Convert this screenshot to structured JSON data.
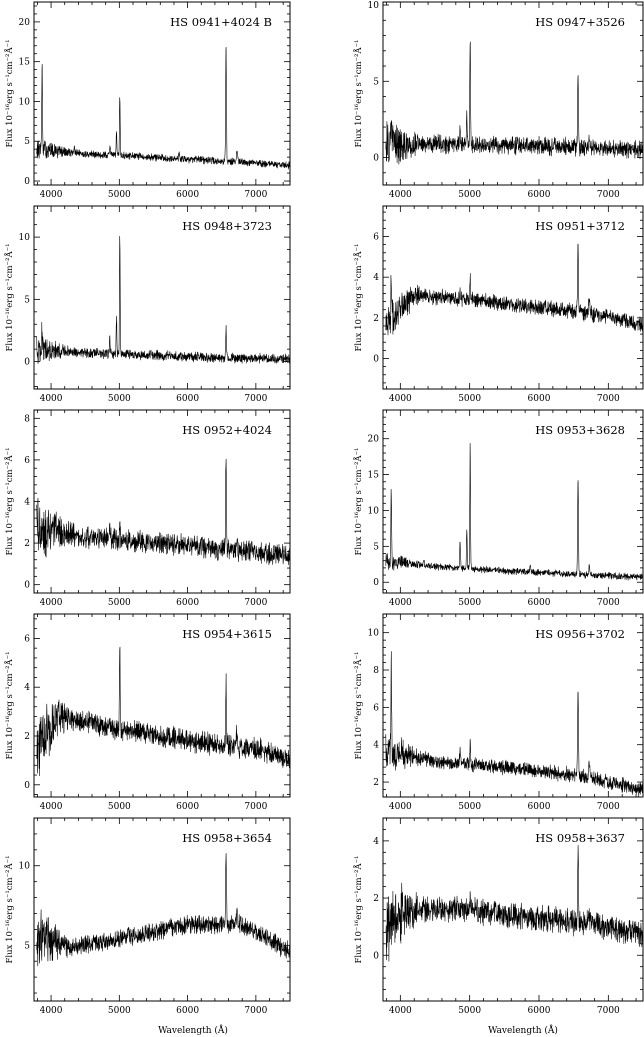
{
  "figure": {
    "xlabel": "Wavelength (Å)",
    "ylabel": "Flux 10⁻¹⁶erg s⁻¹cm⁻²Å⁻¹"
  },
  "chart_data": [
    {
      "type": "line",
      "title": "HS 0941+4024 B",
      "xlim": [
        3750,
        7500
      ],
      "ylim": [
        -0.5,
        22.5
      ],
      "xticks": [
        4000,
        5000,
        6000,
        7000
      ],
      "yticks": [
        0,
        5,
        10,
        15,
        20
      ],
      "continuum": [
        [
          3800,
          4.0
        ],
        [
          4500,
          3.4
        ],
        [
          5500,
          3.0
        ],
        [
          6500,
          2.5
        ],
        [
          7500,
          2.0
        ]
      ],
      "noise": 0.35,
      "lines": [
        [
          3868,
          11.5,
          5
        ],
        [
          4340,
          0.8,
          6
        ],
        [
          4861,
          1.3,
          6
        ],
        [
          4959,
          3.0,
          5
        ],
        [
          5007,
          7.5,
          5
        ],
        [
          5876,
          0.6,
          7
        ],
        [
          6563,
          14.8,
          6
        ],
        [
          6724,
          1.3,
          8
        ]
      ]
    },
    {
      "type": "line",
      "title": "HS 0947+3526",
      "xlim": [
        3750,
        7500
      ],
      "ylim": [
        -1.8,
        10.2
      ],
      "xticks": [
        4000,
        5000,
        6000,
        7000
      ],
      "yticks": [
        0,
        5,
        10
      ],
      "continuum": [
        [
          3800,
          0.8
        ],
        [
          4500,
          0.9
        ],
        [
          5500,
          0.8
        ],
        [
          6500,
          0.7
        ],
        [
          7500,
          0.5
        ]
      ],
      "noise": 0.45,
      "lines": [
        [
          3868,
          1.8,
          5
        ],
        [
          4861,
          1.2,
          6
        ],
        [
          4959,
          2.2,
          5
        ],
        [
          5007,
          7.2,
          5
        ],
        [
          6563,
          4.8,
          6
        ],
        [
          6724,
          0.5,
          8
        ]
      ]
    },
    {
      "type": "line",
      "title": "HS 0948+3723",
      "xlim": [
        3750,
        7500
      ],
      "ylim": [
        -2.2,
        12.5
      ],
      "xticks": [
        4000,
        5000,
        6000,
        7000
      ],
      "yticks": [
        0,
        5,
        10
      ],
      "continuum": [
        [
          3800,
          0.9
        ],
        [
          4500,
          0.7
        ],
        [
          5500,
          0.5
        ],
        [
          6500,
          0.3
        ],
        [
          7500,
          0.2
        ]
      ],
      "noise": 0.3,
      "lines": [
        [
          3868,
          1.8,
          5
        ],
        [
          4861,
          1.3,
          6
        ],
        [
          4959,
          3.0,
          5
        ],
        [
          5007,
          9.4,
          5
        ],
        [
          6563,
          2.3,
          6
        ]
      ]
    },
    {
      "type": "line",
      "title": "HS 0951+3712",
      "xlim": [
        3750,
        7500
      ],
      "ylim": [
        -1.5,
        7.5
      ],
      "xticks": [
        4000,
        5000,
        6000,
        7000
      ],
      "yticks": [
        0,
        2,
        4,
        6
      ],
      "continuum": [
        [
          3800,
          1.8
        ],
        [
          4200,
          3.1
        ],
        [
          5000,
          2.9
        ],
        [
          6000,
          2.5
        ],
        [
          7000,
          2.1
        ],
        [
          7500,
          1.6
        ]
      ],
      "noise": 0.3,
      "lines": [
        [
          3868,
          2.0,
          5
        ],
        [
          4861,
          0.4,
          6
        ],
        [
          5007,
          1.0,
          5
        ],
        [
          6563,
          3.6,
          6
        ],
        [
          6724,
          0.7,
          8
        ]
      ]
    },
    {
      "type": "line",
      "title": "HS 0952+4024",
      "xlim": [
        3750,
        7500
      ],
      "ylim": [
        -0.4,
        8.4
      ],
      "xticks": [
        4000,
        5000,
        6000,
        7000
      ],
      "yticks": [
        0,
        2,
        4,
        6,
        8
      ],
      "continuum": [
        [
          3800,
          2.7
        ],
        [
          4500,
          2.3
        ],
        [
          5500,
          2.0
        ],
        [
          6500,
          1.7
        ],
        [
          7500,
          1.4
        ]
      ],
      "noise": 0.4,
      "lines": [
        [
          4861,
          0.6,
          6
        ],
        [
          5007,
          0.9,
          5
        ],
        [
          6563,
          4.6,
          6
        ],
        [
          6724,
          0.6,
          8
        ]
      ]
    },
    {
      "type": "line",
      "title": "HS 0953+3628",
      "xlim": [
        3750,
        7500
      ],
      "ylim": [
        -1.5,
        24.0
      ],
      "xticks": [
        4000,
        5000,
        6000,
        7000
      ],
      "yticks": [
        0,
        5,
        10,
        15,
        20
      ],
      "continuum": [
        [
          3800,
          3.0
        ],
        [
          4500,
          2.2
        ],
        [
          5500,
          1.6
        ],
        [
          6500,
          1.1
        ],
        [
          7500,
          0.7
        ]
      ],
      "noise": 0.35,
      "lines": [
        [
          3868,
          10.5,
          5
        ],
        [
          4340,
          0.8,
          6
        ],
        [
          4861,
          3.5,
          6
        ],
        [
          4959,
          5.5,
          5
        ],
        [
          5007,
          17.5,
          5
        ],
        [
          5876,
          1.0,
          7
        ],
        [
          6563,
          13.5,
          6
        ],
        [
          6724,
          1.2,
          8
        ]
      ]
    },
    {
      "type": "line",
      "title": "HS 0954+3615",
      "xlim": [
        3750,
        7500
      ],
      "ylim": [
        -0.5,
        7.0
      ],
      "xticks": [
        4000,
        5000,
        6000,
        7000
      ],
      "yticks": [
        0,
        2,
        4,
        6
      ],
      "continuum": [
        [
          3800,
          1.5
        ],
        [
          4100,
          2.8
        ],
        [
          5000,
          2.3
        ],
        [
          6000,
          1.8
        ],
        [
          7000,
          1.5
        ],
        [
          7500,
          1.0
        ]
      ],
      "noise": 0.35,
      "lines": [
        [
          3868,
          1.2,
          5
        ],
        [
          5007,
          3.3,
          5
        ],
        [
          6563,
          2.6,
          6
        ],
        [
          6724,
          0.6,
          8
        ]
      ]
    },
    {
      "type": "line",
      "title": "HS 0956+3702",
      "xlim": [
        3750,
        7500
      ],
      "ylim": [
        1.2,
        11.0
      ],
      "xticks": [
        4000,
        5000,
        6000,
        7000
      ],
      "yticks": [
        2,
        4,
        6,
        8,
        10
      ],
      "continuum": [
        [
          3800,
          3.6
        ],
        [
          4500,
          3.1
        ],
        [
          5500,
          2.8
        ],
        [
          6500,
          2.4
        ],
        [
          7500,
          1.6
        ]
      ],
      "noise": 0.3,
      "lines": [
        [
          3868,
          5.0,
          5
        ],
        [
          4861,
          0.8,
          6
        ],
        [
          5007,
          1.4,
          5
        ],
        [
          6563,
          4.8,
          6
        ],
        [
          6724,
          0.9,
          8
        ]
      ]
    },
    {
      "type": "line",
      "title": "HS 0958+3654",
      "xlim": [
        3750,
        7500
      ],
      "ylim": [
        1.5,
        13.0
      ],
      "xticks": [
        4000,
        5000,
        6000,
        7000
      ],
      "yticks": [
        5,
        10
      ],
      "continuum": [
        [
          3800,
          5.5
        ],
        [
          4300,
          4.9
        ],
        [
          5000,
          5.4
        ],
        [
          6000,
          6.3
        ],
        [
          6800,
          6.3
        ],
        [
          7500,
          4.6
        ]
      ],
      "noise": 0.45,
      "lines": [
        [
          6563,
          4.8,
          6
        ],
        [
          6724,
          0.8,
          8
        ]
      ]
    },
    {
      "type": "line",
      "title": "HS 0958+3637",
      "xlim": [
        3750,
        7500
      ],
      "ylim": [
        -1.6,
        4.8
      ],
      "xticks": [
        4000,
        5000,
        6000,
        7000
      ],
      "yticks": [
        0,
        2,
        4
      ],
      "continuum": [
        [
          3800,
          1.0
        ],
        [
          4100,
          1.6
        ],
        [
          5000,
          1.6
        ],
        [
          6000,
          1.3
        ],
        [
          7000,
          1.0
        ],
        [
          7500,
          0.7
        ]
      ],
      "noise": 0.35,
      "lines": [
        [
          5007,
          0.3,
          5
        ],
        [
          6563,
          2.5,
          6
        ],
        [
          6724,
          0.4,
          8
        ]
      ]
    }
  ]
}
